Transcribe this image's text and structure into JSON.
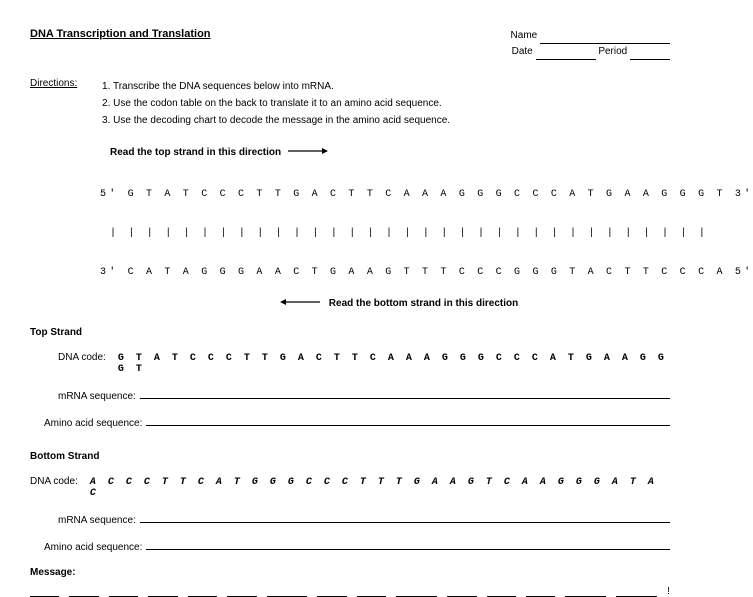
{
  "title": "DNA Transcription and Translation",
  "header": {
    "name_label": "Name",
    "date_label": "Date",
    "period_label": "Period"
  },
  "directions": {
    "label": "Directions:",
    "items": [
      "1.  Transcribe the DNA sequences below into mRNA.",
      "2.  Use the codon table on the back to translate it to an amino acid sequence.",
      "3.  Use the decoding chart to decode the message in the amino acid sequence."
    ]
  },
  "read_top": "Read the top strand in this direction",
  "read_bottom": "Read the bottom strand in this direction",
  "seq": {
    "top": "5' G T A T C C C T T G A C T T C A A A G G G C C C A T G A A G G G T 3'",
    "ticks": "| | | | | | | | | | | | | | | | | | | | | | | | | | | | | | | | |",
    "bottom": "3' C A T A G G G A A C T G A A G T T T C C C G G G T A C T T C C C A 5'"
  },
  "top_strand": {
    "heading": "Top Strand",
    "dna_label": "DNA code:",
    "dna_seq": "G T A T C C C T T G A C T T C A A A G G G C C C A T G A A G G G T",
    "mrna_label": "mRNA sequence:",
    "aa_label": "Amino acid sequence:"
  },
  "bottom_strand": {
    "heading": "Bottom Strand",
    "dna_label": "DNA code:",
    "dna_seq": "A C C C T T C A T G G G C C C T T T G A A G T C A A G G G A T A C",
    "mrna_label": "mRNA sequence:",
    "aa_label": "Amino acid sequence:"
  },
  "message_label": "Message:",
  "message_blank_widths": [
    36,
    36,
    36,
    36,
    36,
    36,
    50,
    36,
    36,
    50,
    36,
    36,
    36,
    50,
    50
  ],
  "exclaim": "!",
  "colors": {
    "text": "#000000",
    "bg": "#ffffff"
  }
}
